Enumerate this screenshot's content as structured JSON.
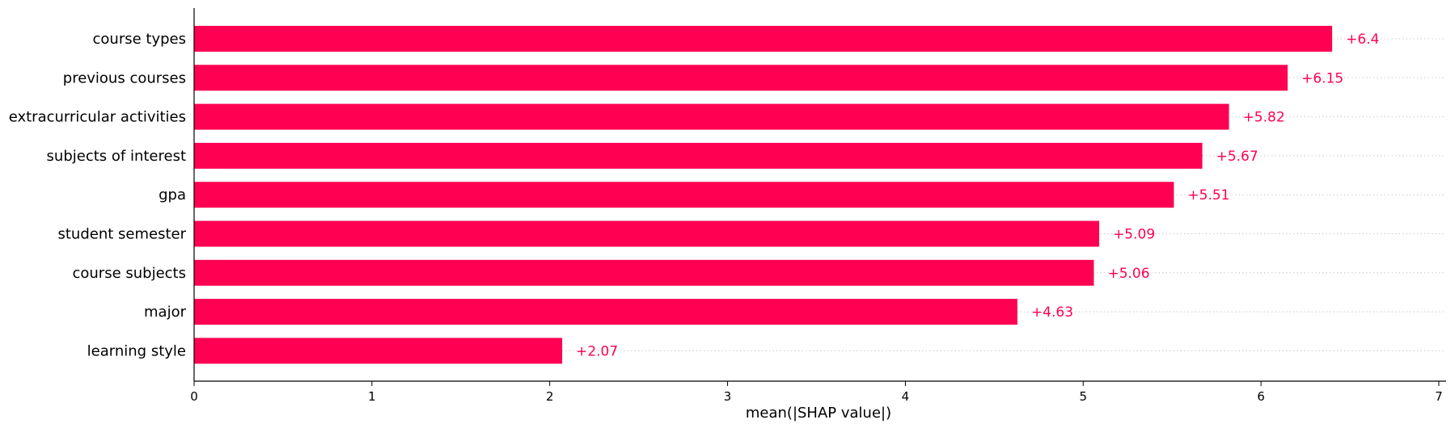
{
  "chart_data": {
    "type": "bar",
    "orientation": "horizontal",
    "categories": [
      "course types",
      "previous courses",
      "extracurricular activities",
      "subjects of interest",
      "gpa",
      "student semester",
      "course subjects",
      "major",
      "learning style"
    ],
    "values": [
      6.4,
      6.15,
      5.82,
      5.67,
      5.51,
      5.09,
      5.06,
      4.63,
      2.07
    ],
    "value_labels": [
      "+6.4",
      "+6.15",
      "+5.82",
      "+5.67",
      "+5.51",
      "+5.09",
      "+5.06",
      "+4.63",
      "+2.07"
    ],
    "xlabel": "mean(|SHAP value|)",
    "ylabel": "",
    "xlim": [
      0,
      7.05
    ],
    "xticks": [
      0,
      1,
      2,
      3,
      4,
      5,
      6,
      7
    ],
    "grid": false,
    "dotted_guides": true,
    "bar_color": "#ff0052",
    "label_color": "#ff0052",
    "guide_color": "#cccccc",
    "axis_color": "#000000"
  }
}
